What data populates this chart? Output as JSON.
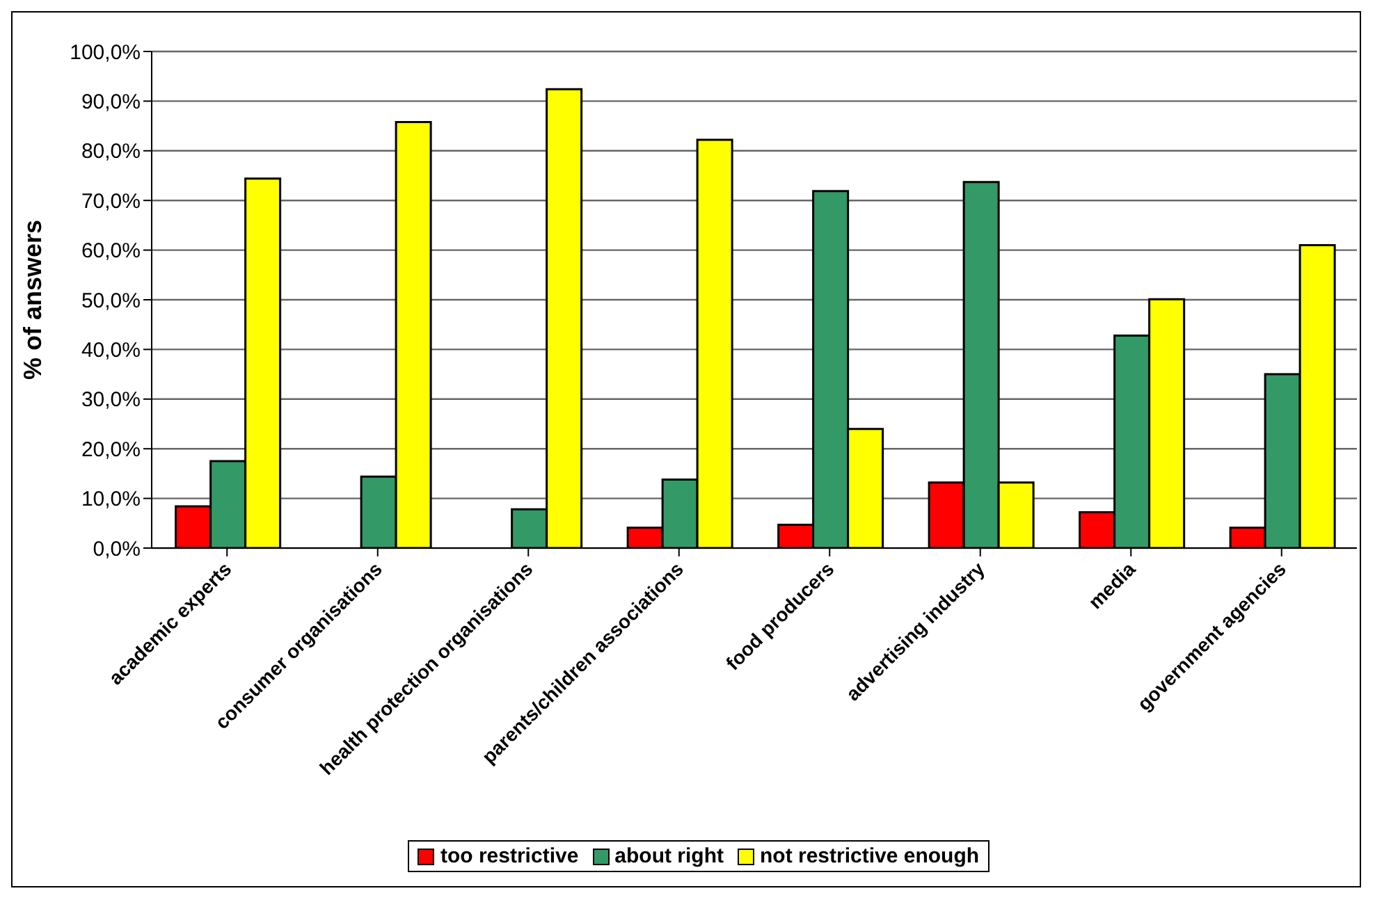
{
  "chart_data": {
    "type": "bar",
    "ylabel": "% of answers",
    "categories": [
      "academic experts",
      "consumer organisations",
      "health protection organisations",
      "parents/children associations",
      "food producers",
      "advertising industry",
      "media",
      "government agencies"
    ],
    "series": [
      {
        "name": "too restrictive",
        "color": "#ff0000",
        "values": [
          8.4,
          0,
          0,
          4.1,
          4.7,
          13.2,
          7.2,
          4.1
        ]
      },
      {
        "name": "about right",
        "color": "#339966",
        "values": [
          17.5,
          14.4,
          7.8,
          13.8,
          71.9,
          73.7,
          42.8,
          35.0
        ]
      },
      {
        "name": "not restrictive enough",
        "color": "#ffff00",
        "values": [
          74.4,
          85.8,
          92.4,
          82.2,
          24.0,
          13.2,
          50.1,
          61.0
        ]
      }
    ],
    "ylim": [
      0,
      100
    ],
    "yticks": [
      {
        "value": 0,
        "label": "0,0%"
      },
      {
        "value": 10,
        "label": "10,0%"
      },
      {
        "value": 20,
        "label": "20,0%"
      },
      {
        "value": 30,
        "label": "30,0%"
      },
      {
        "value": 40,
        "label": "40,0%"
      },
      {
        "value": 50,
        "label": "50,0%"
      },
      {
        "value": 60,
        "label": "60,0%"
      },
      {
        "value": 70,
        "label": "70,0%"
      },
      {
        "value": 80,
        "label": "80,0%"
      },
      {
        "value": 90,
        "label": "90,0%"
      },
      {
        "value": 100,
        "label": "100,0%"
      }
    ],
    "grid": "y",
    "legend": "bottom"
  }
}
